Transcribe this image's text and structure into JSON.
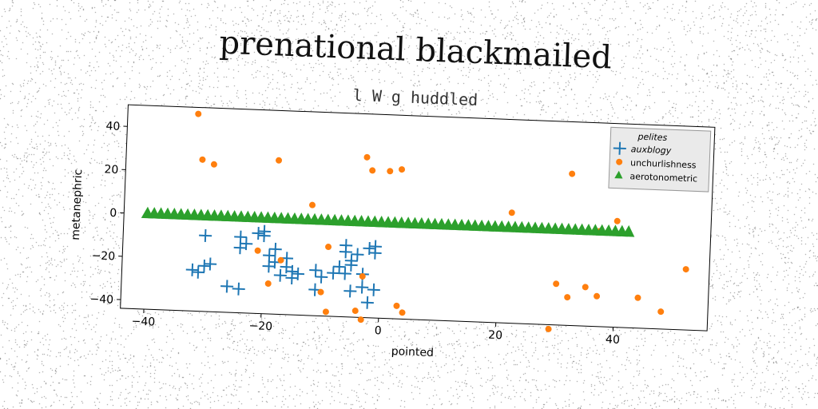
{
  "title": "prenational blackmailed",
  "subtitle": "l W g huddled",
  "chart_data": {
    "type": "scatter",
    "title": "prenational blackmailed",
    "subtitle": "l W g huddled",
    "xlabel": "pointed",
    "ylabel": "metanephric",
    "xlim": [
      -44,
      56
    ],
    "ylim": [
      -44,
      50
    ],
    "xticks": [
      -40,
      -20,
      0,
      20,
      40
    ],
    "yticks": [
      -40,
      -20,
      0,
      20,
      40
    ],
    "legend_title": "pelites",
    "legend_position": "top-right",
    "grid": false,
    "series": [
      {
        "name": "auxblogy",
        "marker": "plus",
        "color": "#1f77b4",
        "points": [
          [
            -32,
            -25
          ],
          [
            -31,
            -26
          ],
          [
            -30,
            -23
          ],
          [
            -29,
            -22
          ],
          [
            -30,
            -9
          ],
          [
            -26,
            -32
          ],
          [
            -24,
            -33
          ],
          [
            -24,
            -9
          ],
          [
            -24,
            -14
          ],
          [
            -23,
            -12
          ],
          [
            -21,
            -7
          ],
          [
            -20,
            -8
          ],
          [
            -20,
            -6
          ],
          [
            -19,
            -17
          ],
          [
            -19,
            -22
          ],
          [
            -18,
            -14
          ],
          [
            -18,
            -20
          ],
          [
            -17,
            -26
          ],
          [
            -16,
            -22
          ],
          [
            -16,
            -18
          ],
          [
            -15,
            -24
          ],
          [
            -15,
            -27
          ],
          [
            -14,
            -25
          ],
          [
            -11,
            -23
          ],
          [
            -11,
            -32
          ],
          [
            -10,
            -26
          ],
          [
            -8,
            -24
          ],
          [
            -7,
            -21
          ],
          [
            -6,
            -11
          ],
          [
            -6,
            -14
          ],
          [
            -6,
            -24
          ],
          [
            -5,
            -20
          ],
          [
            -5,
            -18
          ],
          [
            -5,
            -32
          ],
          [
            -4,
            -15
          ],
          [
            -3,
            -24
          ],
          [
            -3,
            -30
          ],
          [
            -2,
            -12
          ],
          [
            -2,
            -37
          ],
          [
            -1,
            -11
          ],
          [
            -1,
            -14
          ],
          [
            -1,
            -31
          ]
        ]
      },
      {
        "name": "unchurlishness",
        "marker": "dot",
        "color": "#ff7f0e",
        "points": [
          [
            -32,
            47
          ],
          [
            -31,
            26
          ],
          [
            -29,
            24
          ],
          [
            -18,
            27
          ],
          [
            -12,
            7
          ],
          [
            -9,
            -12
          ],
          [
            -9,
            -42
          ],
          [
            -17,
            -19
          ],
          [
            -19,
            -30
          ],
          [
            -21,
            -15
          ],
          [
            -10,
            -33
          ],
          [
            -3,
            30
          ],
          [
            -2,
            24
          ],
          [
            1,
            24
          ],
          [
            3,
            25
          ],
          [
            -3,
            -45
          ],
          [
            -4,
            -41
          ],
          [
            -3,
            -25
          ],
          [
            3,
            -38
          ],
          [
            4,
            -41
          ],
          [
            22,
            7
          ],
          [
            29,
            -46
          ],
          [
            30,
            -25
          ],
          [
            32,
            26
          ],
          [
            32,
            -31
          ],
          [
            35,
            -26
          ],
          [
            37,
            -30
          ],
          [
            37,
            0
          ],
          [
            40,
            5
          ],
          [
            44,
            -30
          ],
          [
            48,
            -36
          ],
          [
            52,
            -16
          ]
        ]
      },
      {
        "name": "aerotonometric",
        "marker": "triangle",
        "color": "#2ca02c",
        "x_start": -40,
        "x_end": 42,
        "count": 73,
        "y": 0
      }
    ]
  }
}
